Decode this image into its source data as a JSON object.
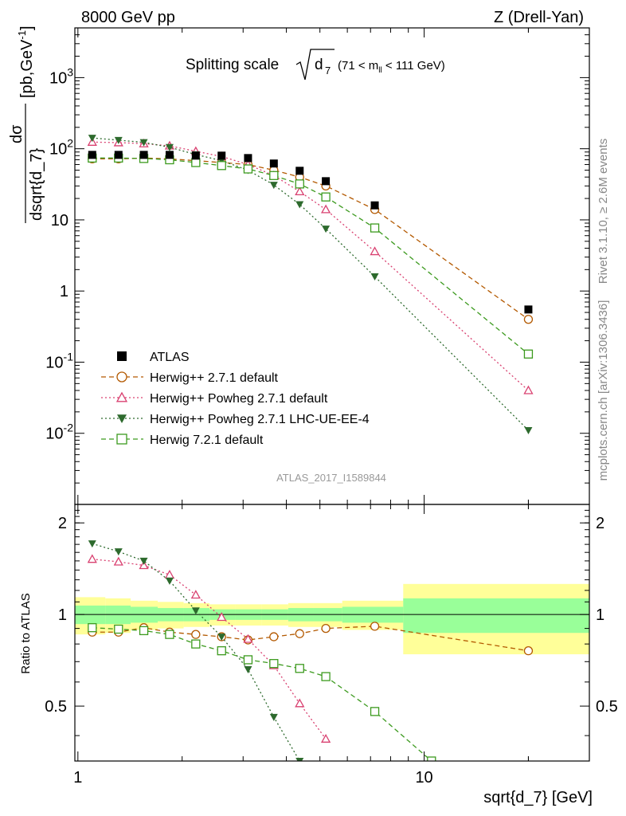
{
  "header": {
    "left": "8000 GeV pp",
    "right": "Z (Drell-Yan)"
  },
  "side_labels": {
    "rivet": "Rivet 3.1.10, ≥ 2.6M events",
    "mcplots": "mcplots.cern.ch [arXiv:1306.3436]"
  },
  "watermark": "ATLAS_2017_I1589844",
  "chart_data": [
    {
      "type": "scatter",
      "panel": "main",
      "title": "Splitting scale √d₇ (71 < m_ll < 111 GeV)",
      "title_main": "Splitting scale",
      "title_sqrt": "d",
      "title_sub": "7",
      "title_cut": "(71 < m",
      "title_cut_sub": "ll",
      "title_cut_end": " < 111 GeV)",
      "ylabel_num": "dσ",
      "ylabel_den": "dsqrt{d_7}",
      "ylabel_units": "[pb,GeV",
      "ylabel_units_sup": "-1",
      "ylabel_units_end": "]",
      "xscale": "log",
      "yscale": "log",
      "xlim": [
        0.98,
        30
      ],
      "ylim": [
        0.001,
        5000
      ],
      "y_ticks": [
        {
          "v": 0.01,
          "base": "10",
          "exp": "-2"
        },
        {
          "v": 0.1,
          "base": "10",
          "exp": "-1"
        },
        {
          "v": 1,
          "base": "1",
          "exp": ""
        },
        {
          "v": 10,
          "base": "10",
          "exp": ""
        },
        {
          "v": 100,
          "base": "10",
          "exp": "2"
        },
        {
          "v": 1000,
          "base": "10",
          "exp": "3"
        }
      ],
      "legend_position": "lower-left",
      "series": [
        {
          "name": "ATLAS",
          "marker": "filled-square",
          "color": "#000000",
          "x": [
            1.1,
            1.31,
            1.55,
            1.84,
            2.19,
            2.6,
            3.1,
            3.68,
            4.37,
            5.2,
            7.2,
            20.0
          ],
          "y": [
            82,
            82,
            82,
            82,
            80,
            80,
            74,
            62,
            49,
            35,
            16,
            0.55
          ]
        },
        {
          "name": "Herwig++ 2.7.1 default",
          "marker": "open-circle",
          "line": "dashed",
          "color": "#b35900",
          "x": [
            1.1,
            1.31,
            1.55,
            1.84,
            2.19,
            2.6,
            3.1,
            3.68,
            4.37,
            5.2,
            7.2,
            20.0
          ],
          "y": [
            72,
            72,
            74,
            72,
            68,
            64,
            60,
            50,
            40,
            30,
            14,
            0.4
          ]
        },
        {
          "name": "Herwig++ Powheg 2.7.1 default",
          "marker": "open-triangle",
          "line": "dotted",
          "color": "#d94070",
          "x": [
            1.1,
            1.31,
            1.55,
            1.84,
            2.19,
            2.6,
            3.1,
            3.68,
            4.37,
            5.2,
            7.2,
            20.0
          ],
          "y": [
            124,
            122,
            118,
            110,
            92,
            78,
            60,
            42,
            25,
            14,
            3.6,
            0.04
          ]
        },
        {
          "name": "Herwig++ Powheg 2.7.1 LHC-UE-EE-4",
          "marker": "filled-triangle-down",
          "line": "dotted",
          "color": "#2d6a2d",
          "x": [
            1.1,
            1.31,
            1.55,
            1.84,
            2.19,
            2.6,
            3.1,
            3.68,
            4.37,
            5.2,
            7.2,
            20.0
          ],
          "y": [
            142,
            132,
            123,
            105,
            83,
            68,
            50,
            31,
            16.5,
            7.5,
            1.6,
            0.011
          ]
        },
        {
          "name": "Herwig 7.2.1 default",
          "marker": "open-square",
          "line": "dashed",
          "color": "#3c9a1e",
          "x": [
            1.1,
            1.31,
            1.55,
            1.84,
            2.19,
            2.6,
            3.1,
            3.68,
            4.37,
            5.2,
            7.2,
            20.0
          ],
          "y": [
            74,
            74,
            73,
            70,
            64,
            58,
            52,
            42,
            32,
            21,
            7.7,
            0.13
          ]
        }
      ]
    },
    {
      "type": "scatter",
      "panel": "ratio",
      "ylabel": "Ratio to ATLAS",
      "xlabel": "sqrt{d_7} [GeV]",
      "xscale": "log",
      "xlim": [
        0.98,
        30
      ],
      "ylim": [
        0.33,
        2.3
      ],
      "y_ticks": [
        0.5,
        1,
        2
      ],
      "y_tick_labels": [
        "0.5",
        "1",
        "2"
      ],
      "x_ticks": [
        1,
        10
      ],
      "x_tick_labels": [
        "1",
        "10"
      ],
      "bands": [
        {
          "xlo": 0.98,
          "xhi": 1.2,
          "inner": [
            0.93,
            1.07
          ],
          "outer": [
            0.86,
            1.14
          ]
        },
        {
          "xlo": 1.2,
          "xhi": 1.42,
          "inner": [
            0.93,
            1.07
          ],
          "outer": [
            0.87,
            1.13
          ]
        },
        {
          "xlo": 1.42,
          "xhi": 1.7,
          "inner": [
            0.94,
            1.06
          ],
          "outer": [
            0.89,
            1.11
          ]
        },
        {
          "xlo": 1.7,
          "xhi": 2.02,
          "inner": [
            0.95,
            1.05
          ],
          "outer": [
            0.9,
            1.1
          ]
        },
        {
          "xlo": 2.02,
          "xhi": 2.4,
          "inner": [
            0.95,
            1.05
          ],
          "outer": [
            0.91,
            1.09
          ]
        },
        {
          "xlo": 2.4,
          "xhi": 2.85,
          "inner": [
            0.96,
            1.04
          ],
          "outer": [
            0.92,
            1.08
          ]
        },
        {
          "xlo": 2.85,
          "xhi": 3.4,
          "inner": [
            0.96,
            1.04
          ],
          "outer": [
            0.92,
            1.08
          ]
        },
        {
          "xlo": 3.4,
          "xhi": 4.05,
          "inner": [
            0.96,
            1.04
          ],
          "outer": [
            0.92,
            1.08
          ]
        },
        {
          "xlo": 4.05,
          "xhi": 4.8,
          "inner": [
            0.95,
            1.05
          ],
          "outer": [
            0.91,
            1.09
          ]
        },
        {
          "xlo": 4.8,
          "xhi": 5.8,
          "inner": [
            0.95,
            1.05
          ],
          "outer": [
            0.91,
            1.09
          ]
        },
        {
          "xlo": 5.8,
          "xhi": 8.7,
          "inner": [
            0.94,
            1.06
          ],
          "outer": [
            0.89,
            1.11
          ]
        },
        {
          "xlo": 8.7,
          "xhi": 30.0,
          "inner": [
            0.87,
            1.13
          ],
          "outer": [
            0.74,
            1.26
          ]
        }
      ],
      "series": [
        {
          "name": "Herwig++ 2.7.1 default",
          "marker": "open-circle",
          "line": "dashed",
          "color": "#b35900",
          "x": [
            1.1,
            1.31,
            1.55,
            1.84,
            2.19,
            2.6,
            3.1,
            3.68,
            4.37,
            5.2,
            7.2,
            20.0
          ],
          "y": [
            0.875,
            0.875,
            0.905,
            0.875,
            0.86,
            0.845,
            0.825,
            0.845,
            0.865,
            0.9,
            0.915,
            0.76
          ]
        },
        {
          "name": "Herwig++ Powheg 2.7.1 default",
          "marker": "open-triangle",
          "line": "dotted",
          "color": "#d94070",
          "x": [
            1.1,
            1.31,
            1.55,
            1.84,
            2.19,
            2.6,
            3.1,
            3.68,
            4.37,
            5.2
          ],
          "y": [
            1.52,
            1.49,
            1.45,
            1.35,
            1.16,
            0.98,
            0.83,
            0.68,
            0.51,
            0.39
          ]
        },
        {
          "name": "Herwig++ Powheg 2.7.1 LHC-UE-EE-4",
          "marker": "filled-triangle-down",
          "line": "dotted",
          "color": "#2d6a2d",
          "x": [
            1.1,
            1.31,
            1.55,
            1.84,
            2.19,
            2.6,
            3.1,
            3.68,
            4.37
          ],
          "y": [
            1.71,
            1.61,
            1.5,
            1.29,
            1.03,
            0.845,
            0.66,
            0.46,
            0.33
          ]
        },
        {
          "name": "Herwig 7.2.1 default",
          "marker": "open-square",
          "line": "dashed",
          "color": "#3c9a1e",
          "x": [
            1.1,
            1.31,
            1.55,
            1.84,
            2.19,
            2.6,
            3.1,
            3.68,
            4.37,
            5.2,
            7.2,
            10.5
          ],
          "y": [
            0.905,
            0.895,
            0.885,
            0.86,
            0.8,
            0.76,
            0.71,
            0.69,
            0.665,
            0.625,
            0.48,
            0.33
          ]
        }
      ]
    }
  ]
}
